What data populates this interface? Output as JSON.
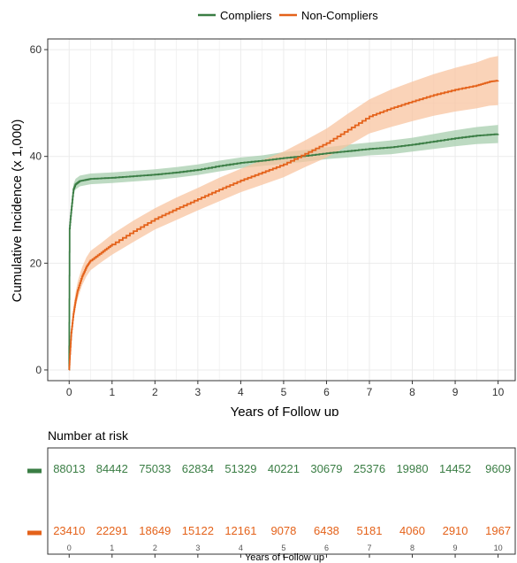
{
  "chart_data": [
    {
      "type": "line",
      "xlabel": "Years of Follow up",
      "ylabel": "Cumulative Incidence (x 1,000)",
      "xlim": [
        -0.5,
        10.4
      ],
      "ylim": [
        -2,
        62
      ],
      "x_ticks": [
        0,
        1,
        2,
        3,
        4,
        5,
        6,
        7,
        8,
        9,
        10
      ],
      "y_ticks": [
        0,
        20,
        40,
        60
      ],
      "grid": true,
      "legend": "top-center",
      "series": [
        {
          "name": "Compliers",
          "color": "#3a7d44",
          "band_color": "#a7cdae",
          "points": [
            [
              0,
              0
            ],
            [
              0.01,
              26.5
            ],
            [
              0.05,
              30
            ],
            [
              0.1,
              33.8
            ],
            [
              0.15,
              34.8
            ],
            [
              0.25,
              35.4
            ],
            [
              0.5,
              35.8
            ],
            [
              1,
              36.0
            ],
            [
              1.5,
              36.3
            ],
            [
              2,
              36.6
            ],
            [
              2.5,
              37.0
            ],
            [
              3,
              37.5
            ],
            [
              3.5,
              38.2
            ],
            [
              4,
              38.8
            ],
            [
              4.5,
              39.2
            ],
            [
              5,
              39.7
            ],
            [
              5.5,
              40.1
            ],
            [
              6,
              40.6
            ],
            [
              6.5,
              41.0
            ],
            [
              7,
              41.4
            ],
            [
              7.5,
              41.7
            ],
            [
              8,
              42.2
            ],
            [
              8.5,
              42.8
            ],
            [
              9,
              43.4
            ],
            [
              9.5,
              43.9
            ],
            [
              10,
              44.2
            ]
          ],
          "band_halfwidth": [
            0,
            0.8,
            0.9,
            1.0,
            1.0,
            1.0,
            1.0,
            1.0,
            1.0,
            1.0,
            1.0,
            1.0,
            1.0,
            1.0,
            1.0,
            1.1,
            1.1,
            1.1,
            1.2,
            1.2,
            1.3,
            1.3,
            1.4,
            1.5,
            1.6,
            1.7
          ]
        },
        {
          "name": "Non-Compliers",
          "color": "#e4621a",
          "band_color": "#f8c4a0",
          "points": [
            [
              0,
              0
            ],
            [
              0.02,
              3
            ],
            [
              0.05,
              7
            ],
            [
              0.1,
              10.5
            ],
            [
              0.15,
              13
            ],
            [
              0.2,
              15
            ],
            [
              0.3,
              17.5
            ],
            [
              0.4,
              19.3
            ],
            [
              0.5,
              20.5
            ],
            [
              0.75,
              22.0
            ],
            [
              1,
              23.5
            ],
            [
              1.5,
              26
            ],
            [
              2,
              28.3
            ],
            [
              2.5,
              30.2
            ],
            [
              3,
              32
            ],
            [
              3.5,
              33.8
            ],
            [
              4,
              35.5
            ],
            [
              4.5,
              37
            ],
            [
              5,
              38.5
            ],
            [
              5.5,
              40.5
            ],
            [
              6,
              42.5
            ],
            [
              6.5,
              45
            ],
            [
              7,
              47.5
            ],
            [
              7.5,
              49
            ],
            [
              8,
              50.3
            ],
            [
              8.5,
              51.5
            ],
            [
              9,
              52.5
            ],
            [
              9.5,
              53.3
            ],
            [
              9.8,
              54
            ],
            [
              10,
              54.2
            ]
          ],
          "band_halfwidth": [
            0,
            0.6,
            1.0,
            1.3,
            1.5,
            1.6,
            1.7,
            1.8,
            1.8,
            1.8,
            1.9,
            2.0,
            2.0,
            2.1,
            2.1,
            2.2,
            2.2,
            2.3,
            2.4,
            2.5,
            2.7,
            3.0,
            3.2,
            3.5,
            3.7,
            3.9,
            4.1,
            4.3,
            4.5,
            4.6
          ]
        }
      ]
    },
    {
      "type": "table",
      "title": "Number at risk",
      "xlabel": "Years of Follow up",
      "x_ticks": [
        0,
        1,
        2,
        3,
        4,
        5,
        6,
        7,
        8,
        9,
        10
      ],
      "rows": [
        {
          "name": "Compliers",
          "color": "#3a7d44",
          "values": [
            88013,
            84442,
            75033,
            62834,
            51329,
            40221,
            30679,
            25376,
            19980,
            14452,
            9609
          ]
        },
        {
          "name": "Non-Compliers",
          "color": "#e4621a",
          "values": [
            23410,
            22291,
            18649,
            15122,
            12161,
            9078,
            6438,
            5181,
            4060,
            2910,
            1967
          ]
        }
      ]
    }
  ]
}
